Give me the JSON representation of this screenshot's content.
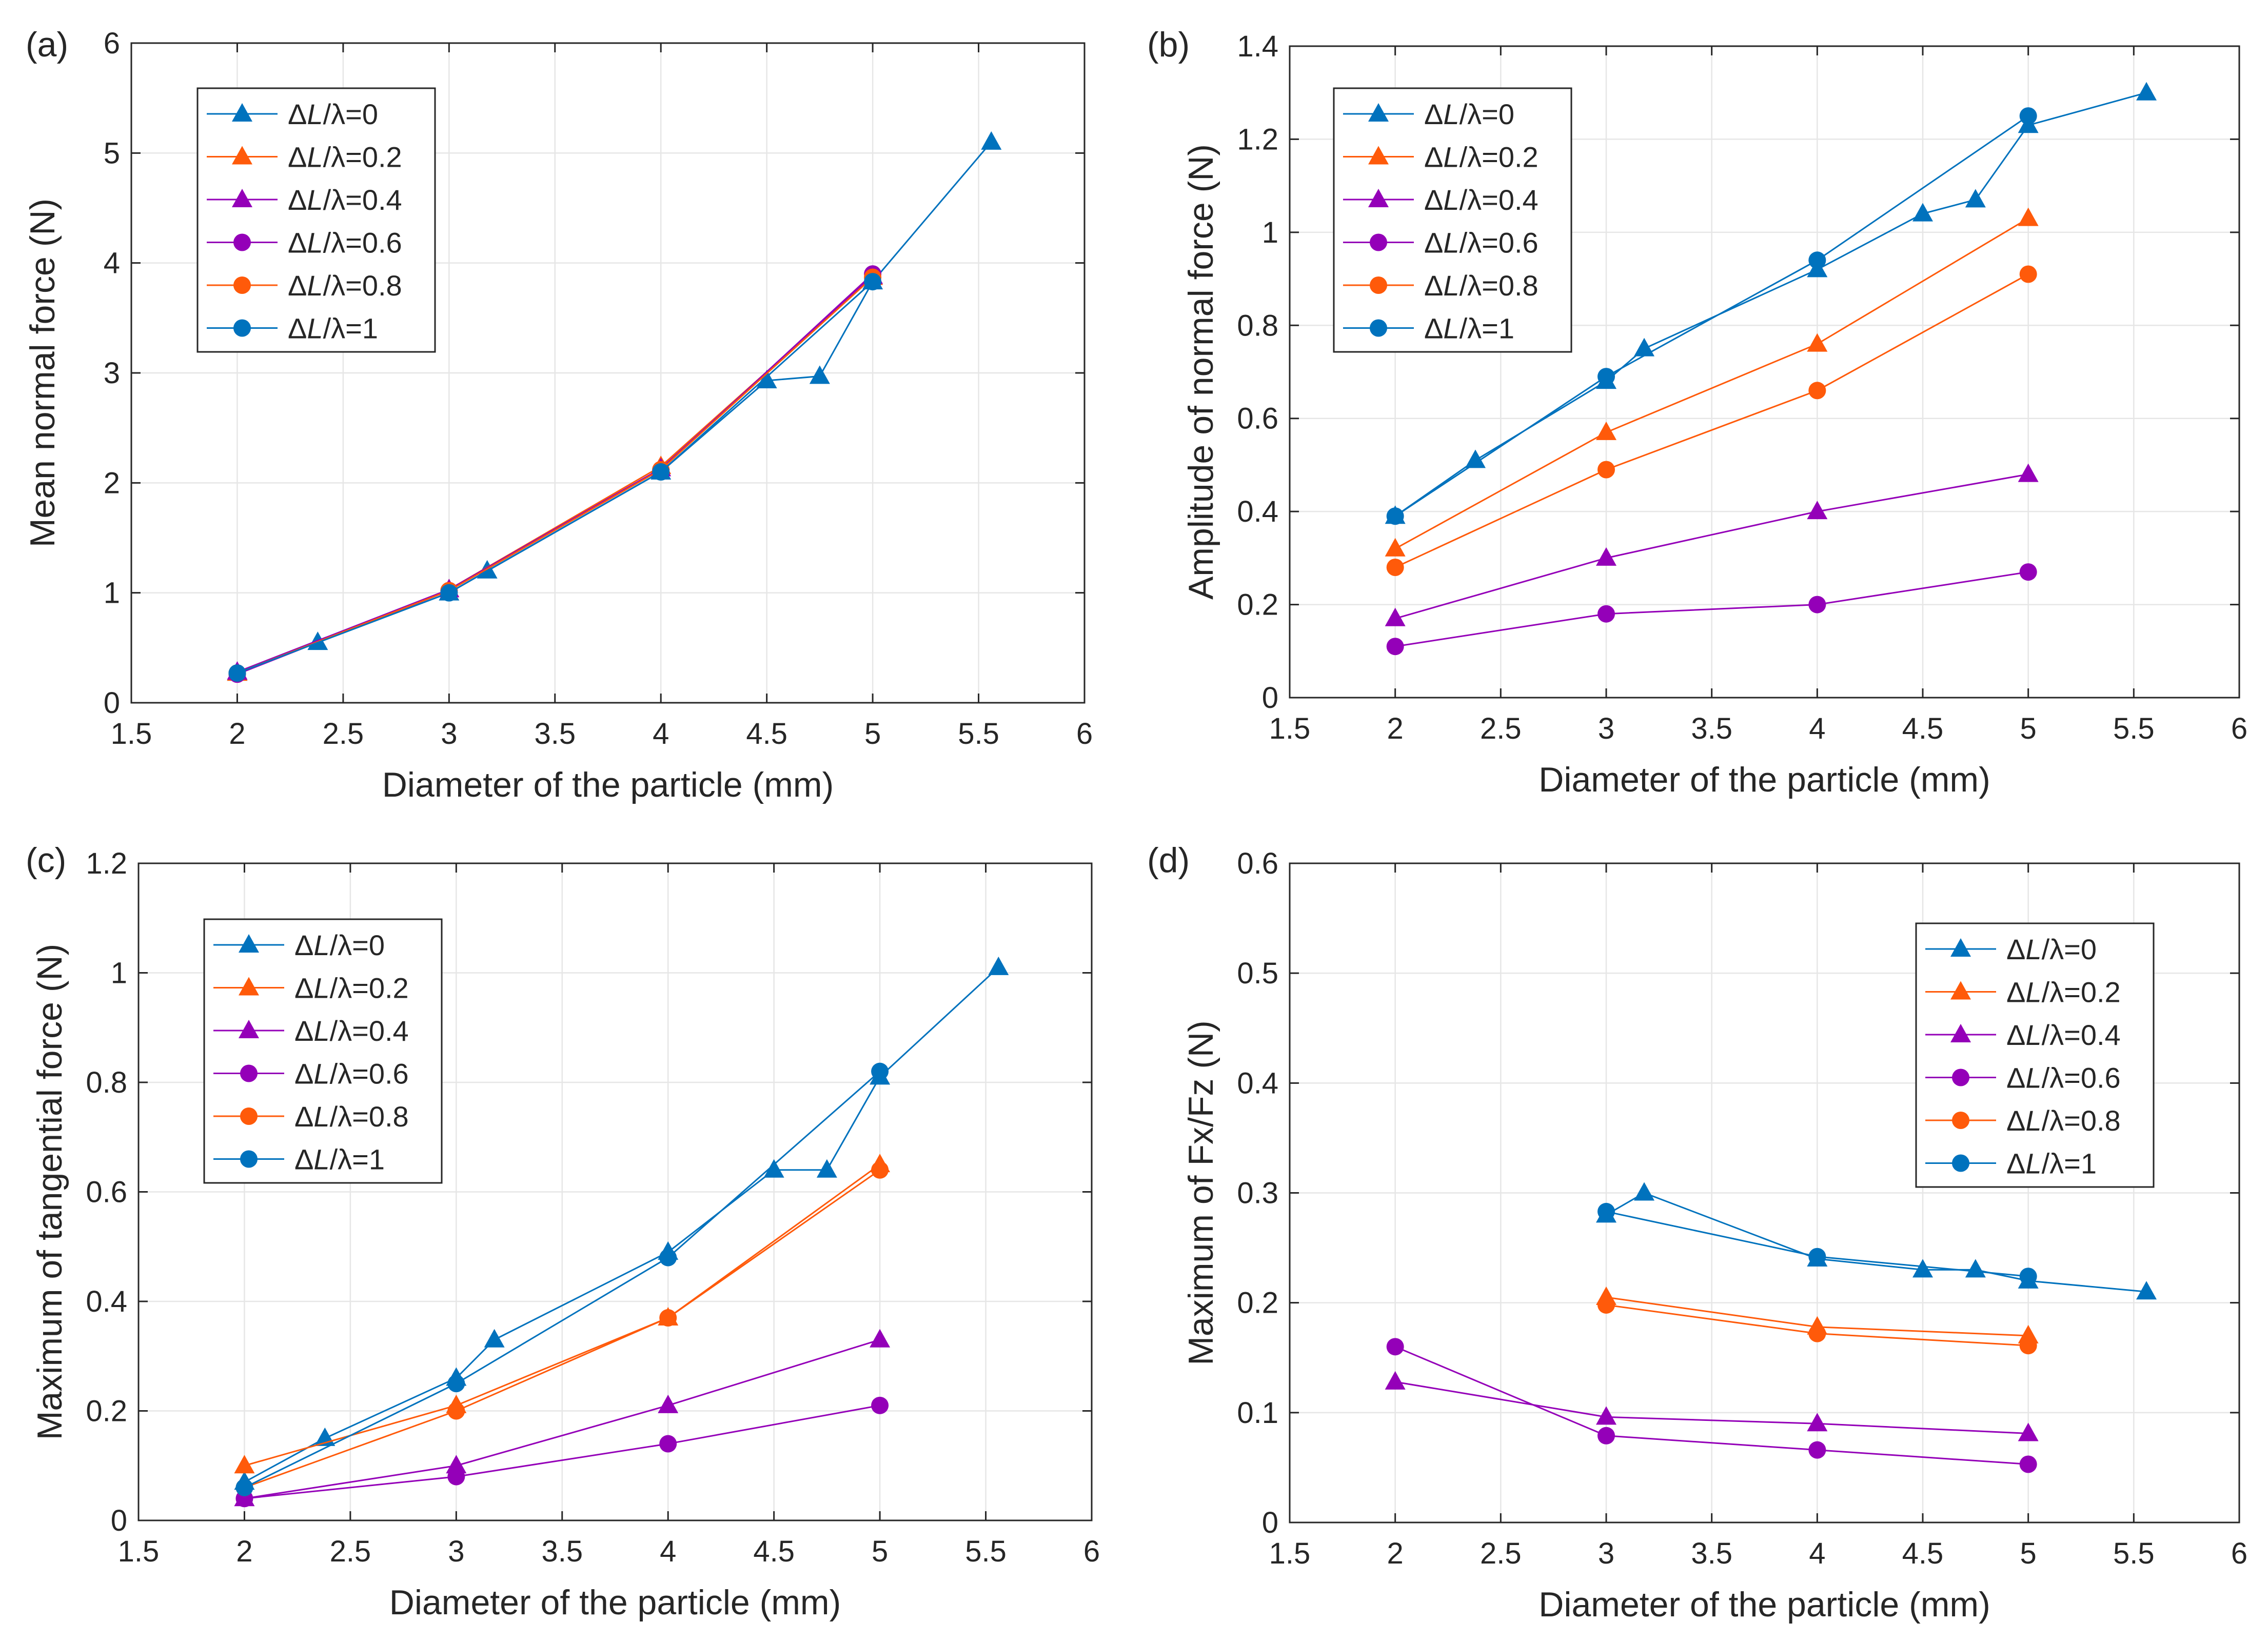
{
  "chart_data": [
    {
      "panel": "(a)",
      "type": "line",
      "xlabel": "Diameter of the particle (mm)",
      "ylabel": "Mean normal force (N)",
      "xlim": [
        1.5,
        6
      ],
      "ylim": [
        0,
        6
      ],
      "xticks": [
        1.5,
        2,
        2.5,
        3,
        3.5,
        4,
        4.5,
        5,
        5.5,
        6
      ],
      "yticks": [
        0,
        1,
        2,
        3,
        4,
        5,
        6
      ],
      "xtick_labels": [
        "1.5",
        "2",
        "2.5",
        "3",
        "3.5",
        "4",
        "4.5",
        "5",
        "5.5",
        "6"
      ],
      "ytick_labels": [
        "0",
        "1",
        "2",
        "3",
        "4",
        "5",
        "6"
      ],
      "grid": true,
      "legend_position": "top-left",
      "series": [
        {
          "prefix": "ΔL/λ=",
          "ratio": "0",
          "marker": "triangle",
          "color": "#0072BD",
          "x": [
            2,
            2.38,
            3,
            3.18,
            4,
            4.5,
            4.75,
            5,
            5.56
          ],
          "y": [
            0.27,
            0.55,
            1.0,
            1.2,
            2.1,
            2.93,
            2.97,
            3.83,
            5.1
          ]
        },
        {
          "prefix": "ΔL/λ=",
          "ratio": "0.2",
          "marker": "triangle",
          "color": "#FF5A0A",
          "x": [
            2,
            3,
            4,
            5
          ],
          "y": [
            0.27,
            1.03,
            2.15,
            3.87
          ]
        },
        {
          "prefix": "ΔL/λ=",
          "ratio": "0.4",
          "marker": "triangle",
          "color": "#9400B8",
          "x": [
            2,
            3,
            4,
            5
          ],
          "y": [
            0.28,
            1.03,
            2.13,
            3.88
          ]
        },
        {
          "prefix": "ΔL/λ=",
          "ratio": "0.6",
          "marker": "circle",
          "color": "#9400B8",
          "x": [
            2,
            3,
            4,
            5
          ],
          "y": [
            0.26,
            1.02,
            2.12,
            3.9
          ]
        },
        {
          "prefix": "ΔL/λ=",
          "ratio": "0.8",
          "marker": "circle",
          "color": "#FF5A0A",
          "x": [
            2,
            3,
            4,
            5
          ],
          "y": [
            0.27,
            1.02,
            2.12,
            3.87
          ]
        },
        {
          "prefix": "ΔL/λ=",
          "ratio": "1",
          "marker": "circle",
          "color": "#0072BD",
          "x": [
            2,
            3,
            4,
            5
          ],
          "y": [
            0.27,
            1.0,
            2.1,
            3.83
          ]
        }
      ]
    },
    {
      "panel": "(b)",
      "type": "line",
      "xlabel": "Diameter of the particle (mm)",
      "ylabel": "Amplitude of normal force (N)",
      "xlim": [
        1.5,
        6
      ],
      "ylim": [
        0,
        1.4
      ],
      "xticks": [
        1.5,
        2,
        2.5,
        3,
        3.5,
        4,
        4.5,
        5,
        5.5,
        6
      ],
      "yticks": [
        0,
        0.2,
        0.4,
        0.6,
        0.8,
        1,
        1.2,
        1.4
      ],
      "xtick_labels": [
        "1.5",
        "2",
        "2.5",
        "3",
        "3.5",
        "4",
        "4.5",
        "5",
        "5.5",
        "6"
      ],
      "ytick_labels": [
        "0",
        "0.2",
        "0.4",
        "0.6",
        "0.8",
        "1",
        "1.2",
        "1.4"
      ],
      "grid": true,
      "legend_position": "top-left",
      "series": [
        {
          "prefix": "ΔL/λ=",
          "ratio": "0",
          "marker": "triangle",
          "color": "#0072BD",
          "x": [
            2,
            2.38,
            3,
            3.18,
            4,
            4.5,
            4.75,
            5,
            5.56
          ],
          "y": [
            0.39,
            0.51,
            0.68,
            0.75,
            0.92,
            1.04,
            1.07,
            1.23,
            1.3
          ]
        },
        {
          "prefix": "ΔL/λ=",
          "ratio": "0.2",
          "marker": "triangle",
          "color": "#FF5A0A",
          "x": [
            2,
            3,
            4,
            5
          ],
          "y": [
            0.32,
            0.57,
            0.76,
            1.03
          ]
        },
        {
          "prefix": "ΔL/λ=",
          "ratio": "0.4",
          "marker": "triangle",
          "color": "#9400B8",
          "x": [
            2,
            3,
            4,
            5
          ],
          "y": [
            0.17,
            0.3,
            0.4,
            0.48
          ]
        },
        {
          "prefix": "ΔL/λ=",
          "ratio": "0.6",
          "marker": "circle",
          "color": "#9400B8",
          "x": [
            2,
            3,
            4,
            5
          ],
          "y": [
            0.11,
            0.18,
            0.2,
            0.27
          ]
        },
        {
          "prefix": "ΔL/λ=",
          "ratio": "0.8",
          "marker": "circle",
          "color": "#FF5A0A",
          "x": [
            2,
            3,
            4,
            5
          ],
          "y": [
            0.28,
            0.49,
            0.66,
            0.91
          ]
        },
        {
          "prefix": "ΔL/λ=",
          "ratio": "1",
          "marker": "circle",
          "color": "#0072BD",
          "x": [
            2,
            3,
            4,
            5
          ],
          "y": [
            0.39,
            0.69,
            0.94,
            1.25
          ]
        }
      ]
    },
    {
      "panel": "(c)",
      "type": "line",
      "xlabel": "Diameter of the particle (mm)",
      "ylabel": "Maximum of tangential force (N)",
      "xlim": [
        1.5,
        6
      ],
      "ylim": [
        0,
        1.2
      ],
      "xticks": [
        1.5,
        2,
        2.5,
        3,
        3.5,
        4,
        4.5,
        5,
        5.5,
        6
      ],
      "yticks": [
        0,
        0.2,
        0.4,
        0.6,
        0.8,
        1,
        1.2
      ],
      "xtick_labels": [
        "1.5",
        "2",
        "2.5",
        "3",
        "3.5",
        "4",
        "4.5",
        "5",
        "5.5",
        "6"
      ],
      "ytick_labels": [
        "0",
        "0.2",
        "0.4",
        "0.6",
        "0.8",
        "1",
        "1.2"
      ],
      "grid": true,
      "legend_position": "top-left",
      "series": [
        {
          "prefix": "ΔL/λ=",
          "ratio": "0",
          "marker": "triangle",
          "color": "#0072BD",
          "x": [
            2,
            2.38,
            3,
            3.18,
            4,
            4.5,
            4.75,
            5,
            5.56
          ],
          "y": [
            0.07,
            0.15,
            0.26,
            0.33,
            0.49,
            0.64,
            0.64,
            0.81,
            1.01
          ]
        },
        {
          "prefix": "ΔL/λ=",
          "ratio": "0.2",
          "marker": "triangle",
          "color": "#FF5A0A",
          "x": [
            2,
            3,
            4,
            5
          ],
          "y": [
            0.1,
            0.21,
            0.37,
            0.65
          ]
        },
        {
          "prefix": "ΔL/λ=",
          "ratio": "0.4",
          "marker": "triangle",
          "color": "#9400B8",
          "x": [
            2,
            3,
            4,
            5
          ],
          "y": [
            0.04,
            0.1,
            0.21,
            0.33
          ]
        },
        {
          "prefix": "ΔL/λ=",
          "ratio": "0.6",
          "marker": "circle",
          "color": "#9400B8",
          "x": [
            2,
            3,
            4,
            5
          ],
          "y": [
            0.04,
            0.08,
            0.14,
            0.21
          ]
        },
        {
          "prefix": "ΔL/λ=",
          "ratio": "0.8",
          "marker": "circle",
          "color": "#FF5A0A",
          "x": [
            2,
            3,
            4,
            5
          ],
          "y": [
            0.06,
            0.2,
            0.37,
            0.64
          ]
        },
        {
          "prefix": "ΔL/λ=",
          "ratio": "1",
          "marker": "circle",
          "color": "#0072BD",
          "x": [
            2,
            3,
            4,
            5
          ],
          "y": [
            0.06,
            0.25,
            0.48,
            0.82
          ]
        }
      ]
    },
    {
      "panel": "(d)",
      "type": "line",
      "xlabel": "Diameter of the particle (mm)",
      "ylabel": "Maximum of Fx/Fz (N)",
      "xlim": [
        1.5,
        6
      ],
      "ylim": [
        0,
        0.6
      ],
      "xticks": [
        1.5,
        2,
        2.5,
        3,
        3.5,
        4,
        4.5,
        5,
        5.5,
        6
      ],
      "yticks": [
        0,
        0.1,
        0.2,
        0.3,
        0.4,
        0.5,
        0.6
      ],
      "xtick_labels": [
        "1.5",
        "2",
        "2.5",
        "3",
        "3.5",
        "4",
        "4.5",
        "5",
        "5.5",
        "6"
      ],
      "ytick_labels": [
        "0",
        "0.1",
        "0.2",
        "0.3",
        "0.4",
        "0.5",
        "0.6"
      ],
      "grid": true,
      "legend_position": "top-right",
      "series": [
        {
          "prefix": "ΔL/λ=",
          "ratio": "0",
          "marker": "triangle",
          "color": "#0072BD",
          "x": [
            3,
            3.18,
            4,
            4.5,
            4.75,
            5,
            5.56
          ],
          "y": [
            0.28,
            0.3,
            0.24,
            0.23,
            0.23,
            0.22,
            0.21
          ]
        },
        {
          "prefix": "ΔL/λ=",
          "ratio": "0.2",
          "marker": "triangle",
          "color": "#FF5A0A",
          "x": [
            3,
            4,
            5
          ],
          "y": [
            0.205,
            0.178,
            0.17
          ]
        },
        {
          "prefix": "ΔL/λ=",
          "ratio": "0.4",
          "marker": "triangle",
          "color": "#9400B8",
          "x": [
            2,
            3,
            4,
            5
          ],
          "y": [
            0.128,
            0.096,
            0.09,
            0.081
          ]
        },
        {
          "prefix": "ΔL/λ=",
          "ratio": "0.6",
          "marker": "circle",
          "color": "#9400B8",
          "x": [
            2,
            3,
            4,
            5
          ],
          "y": [
            0.16,
            0.079,
            0.066,
            0.053
          ]
        },
        {
          "prefix": "ΔL/λ=",
          "ratio": "0.8",
          "marker": "circle",
          "color": "#FF5A0A",
          "x": [
            3,
            4,
            5
          ],
          "y": [
            0.198,
            0.172,
            0.161
          ]
        },
        {
          "prefix": "ΔL/λ=",
          "ratio": "1",
          "marker": "circle",
          "color": "#0072BD",
          "x": [
            3,
            4,
            5
          ],
          "y": [
            0.283,
            0.242,
            0.224
          ]
        }
      ]
    }
  ]
}
